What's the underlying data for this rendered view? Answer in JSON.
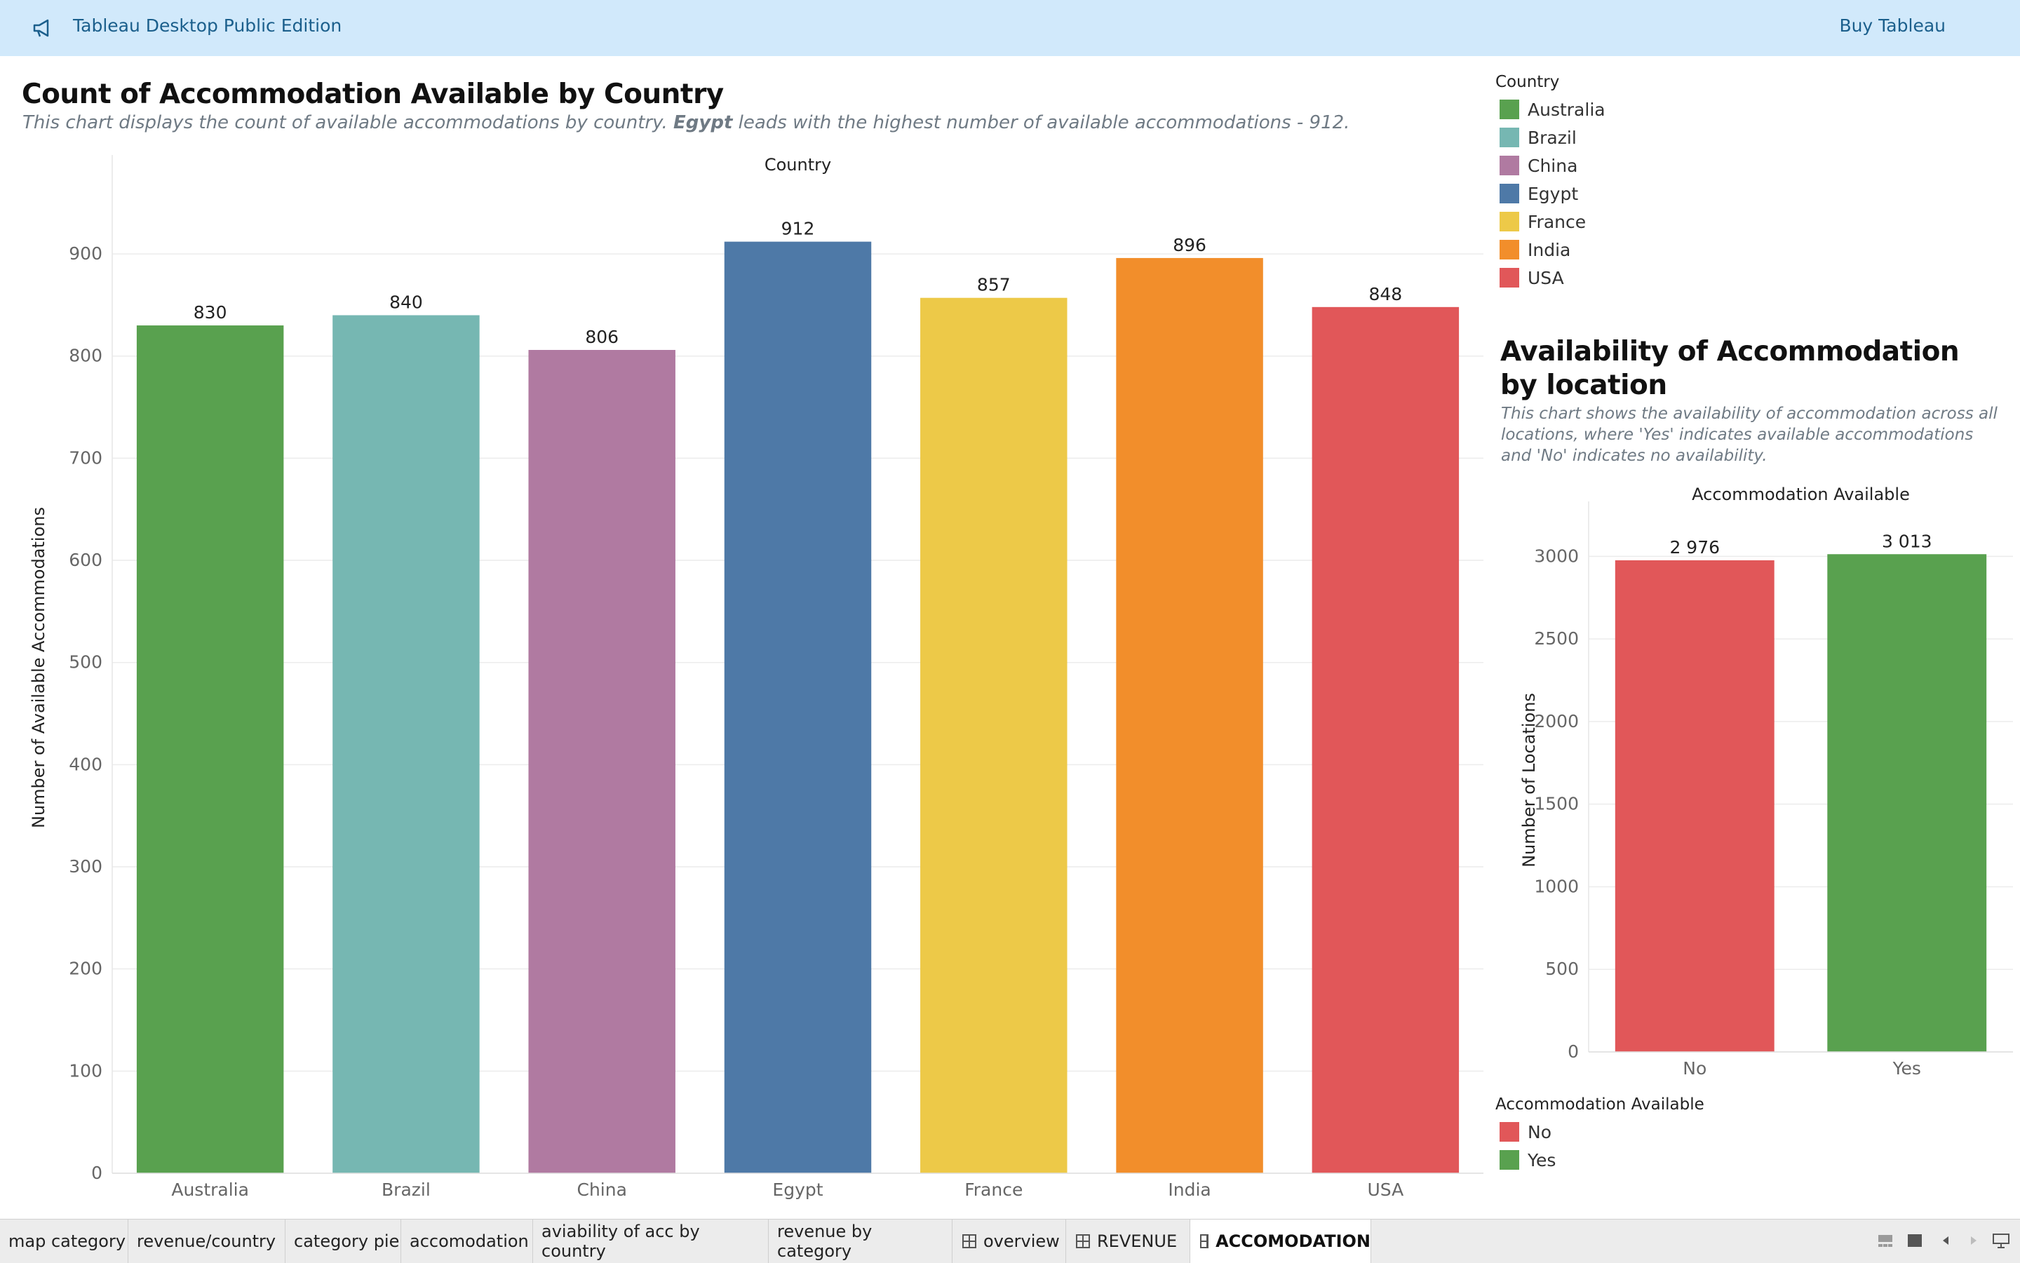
{
  "topbar": {
    "app_title": "Tableau Desktop Public Edition",
    "buy_label": "Buy Tableau",
    "icon": "megaphone-icon"
  },
  "main_chart": {
    "title": "Count of Accommodation Available by Country",
    "subtitle_pre": "This chart displays the count of available accommodations by country. ",
    "subtitle_bold": "Egypt",
    "subtitle_post": " leads with the highest number of available accommodations - 912."
  },
  "side_chart": {
    "title": "Availability of Accommodation by location",
    "subtitle": "This chart shows the availability of accommodation across all locations, where 'Yes' indicates available accommodations and 'No' indicates no availability."
  },
  "legend_country": {
    "title": "Country",
    "items": [
      {
        "label": "Australia",
        "color": "#59a14f"
      },
      {
        "label": "Brazil",
        "color": "#76b7b2"
      },
      {
        "label": "China",
        "color": "#b07aa1"
      },
      {
        "label": "Egypt",
        "color": "#4e79a7"
      },
      {
        "label": "France",
        "color": "#edc948"
      },
      {
        "label": "India",
        "color": "#f28e2b"
      },
      {
        "label": "USA",
        "color": "#e15759"
      }
    ]
  },
  "legend_availability": {
    "title": "Accommodation Available",
    "items": [
      {
        "label": "No",
        "color": "#e15759"
      },
      {
        "label": "Yes",
        "color": "#59a14f"
      }
    ]
  },
  "chart_data": [
    {
      "type": "bar",
      "title": "Count of Accommodation Available by Country",
      "xlabel": "Country",
      "ylabel": "Number of Available Accommodations",
      "categories": [
        "Australia",
        "Brazil",
        "China",
        "Egypt",
        "France",
        "India",
        "USA"
      ],
      "values": [
        830,
        840,
        806,
        912,
        857,
        896,
        848
      ],
      "value_labels": [
        "830",
        "840",
        "806",
        "912",
        "857",
        "896",
        "848"
      ],
      "colors": [
        "#59a14f",
        "#76b7b2",
        "#b07aa1",
        "#4e79a7",
        "#edc948",
        "#f28e2b",
        "#e15759"
      ],
      "yticks": [
        0,
        100,
        200,
        300,
        400,
        500,
        600,
        700,
        800,
        900
      ],
      "ylim": [
        0,
        990
      ],
      "grid": true
    },
    {
      "type": "bar",
      "title": "Availability of Accommodation by location",
      "xlabel": "Accommodation Available",
      "ylabel": "Number of Locations",
      "categories": [
        "No",
        "Yes"
      ],
      "values": [
        2976,
        3013
      ],
      "value_labels": [
        "2 976",
        "3 013"
      ],
      "colors": [
        "#e15759",
        "#59a14f"
      ],
      "yticks": [
        0,
        500,
        1000,
        1500,
        2000,
        2500,
        3000
      ],
      "ylim": [
        0,
        3290
      ],
      "grid": true
    }
  ],
  "tabs": [
    {
      "label": "map category",
      "icon": false,
      "active": false
    },
    {
      "label": "revenue/country",
      "icon": false,
      "active": false
    },
    {
      "label": "category pie",
      "icon": false,
      "active": false
    },
    {
      "label": "accomodation",
      "icon": false,
      "active": false
    },
    {
      "label": "aviability of acc by country",
      "icon": false,
      "active": false
    },
    {
      "label": "revenue by category",
      "icon": false,
      "active": false
    },
    {
      "label": "overview",
      "icon": true,
      "active": false
    },
    {
      "label": "REVENUE",
      "icon": true,
      "active": false
    },
    {
      "label": "ACCOMODATION",
      "icon": true,
      "active": true
    }
  ]
}
